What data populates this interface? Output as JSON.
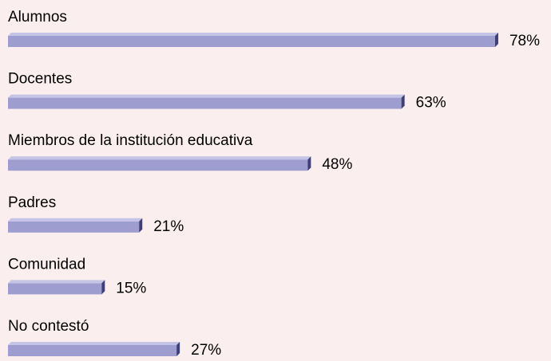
{
  "chart_data": {
    "type": "bar",
    "orientation": "horizontal",
    "categories": [
      "Alumnos",
      "Docentes",
      "Miembros de la institución educativa",
      "Padres",
      "Comunidad",
      "No contestó"
    ],
    "values": [
      78,
      63,
      48,
      21,
      15,
      27
    ],
    "value_labels": [
      "78%",
      "63%",
      "48%",
      "21%",
      "15%",
      "27%"
    ],
    "color": "#9d9dcf"
  }
}
